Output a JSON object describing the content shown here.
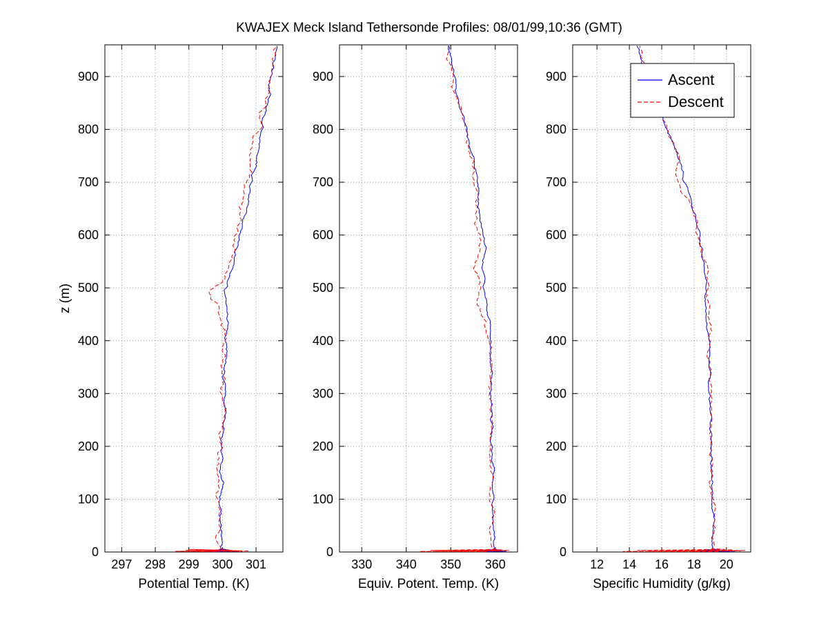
{
  "title": "KWAJEX Meck Island Tethersonde Profiles: 08/01/99,10:36 (GMT)",
  "colors": {
    "ascent": "#0000ff",
    "descent": "#ff0000",
    "grid": "#909090",
    "axis": "#000000",
    "background": "#ffffff"
  },
  "legend": {
    "panel": 2,
    "position": "northeast",
    "entries": [
      {
        "label": "Ascent",
        "color": "#0000ff",
        "style": "solid"
      },
      {
        "label": "Descent",
        "color": "#ff0000",
        "style": "dashed"
      }
    ]
  },
  "chart_data": [
    {
      "type": "line",
      "id": "potential-temp",
      "xlabel": "Potential Temp. (K)",
      "ylabel": "z (m)",
      "xlim": [
        296.5,
        301.8
      ],
      "ylim": [
        0,
        960
      ],
      "xticks": [
        297,
        298,
        299,
        300,
        301
      ],
      "yticks": [
        0,
        100,
        200,
        300,
        400,
        500,
        600,
        700,
        800,
        900
      ],
      "grid": true,
      "series": [
        {
          "name": "Ascent",
          "color": "#0000ff",
          "style": "solid",
          "noise": 0.07,
          "seed": 7,
          "surface": [
            [
              0.5,
              300.0
            ],
            [
              2,
              299.5
            ],
            [
              1,
              300.4
            ],
            [
              3,
              299.6
            ],
            [
              1.5,
              300.5
            ],
            [
              4,
              299.8
            ],
            [
              2,
              300.3
            ],
            [
              5,
              299.9
            ],
            [
              3,
              300.2
            ],
            [
              6,
              300.0
            ]
          ],
          "profile": [
            [
              6,
              300.0
            ],
            [
              50,
              299.97
            ],
            [
              100,
              299.95
            ],
            [
              150,
              299.97
            ],
            [
              200,
              300.0
            ],
            [
              250,
              300.0
            ],
            [
              300,
              300.03
            ],
            [
              350,
              300.06
            ],
            [
              400,
              300.08
            ],
            [
              450,
              300.1
            ],
            [
              500,
              300.16
            ],
            [
              550,
              300.32
            ],
            [
              600,
              300.5
            ],
            [
              650,
              300.68
            ],
            [
              700,
              300.85
            ],
            [
              750,
              301.0
            ],
            [
              800,
              301.15
            ],
            [
              850,
              301.3
            ],
            [
              900,
              301.45
            ],
            [
              960,
              301.67
            ]
          ]
        },
        {
          "name": "Descent",
          "color": "#ff0000",
          "style": "dashed",
          "noise": 0.1,
          "seed": 13,
          "surface": [
            [
              0.5,
              299.8
            ],
            [
              1.5,
              298.6
            ],
            [
              1,
              300.6
            ],
            [
              3,
              298.9
            ],
            [
              2,
              300.8
            ],
            [
              4,
              299.2
            ],
            [
              2.5,
              300.5
            ],
            [
              5,
              299.0
            ],
            [
              3,
              300.3
            ],
            [
              6,
              299.9
            ]
          ],
          "profile": [
            [
              6,
              299.95
            ],
            [
              50,
              299.94
            ],
            [
              100,
              299.92
            ],
            [
              150,
              299.94
            ],
            [
              200,
              299.97
            ],
            [
              250,
              299.98
            ],
            [
              300,
              300.0
            ],
            [
              350,
              300.02
            ],
            [
              400,
              300.04
            ],
            [
              450,
              300.0
            ],
            [
              480,
              299.65
            ],
            [
              495,
              299.6
            ],
            [
              510,
              299.95
            ],
            [
              550,
              300.22
            ],
            [
              600,
              300.4
            ],
            [
              650,
              300.55
            ],
            [
              700,
              300.72
            ],
            [
              750,
              300.88
            ],
            [
              800,
              301.06
            ],
            [
              850,
              301.26
            ],
            [
              900,
              301.42
            ],
            [
              960,
              301.62
            ]
          ]
        }
      ]
    },
    {
      "type": "line",
      "id": "equiv-potent-temp",
      "xlabel": "Equiv. Potent. Temp. (K)",
      "ylabel": "",
      "xlim": [
        325,
        365
      ],
      "ylim": [
        0,
        960
      ],
      "xticks": [
        330,
        340,
        350,
        360
      ],
      "yticks": [
        0,
        100,
        200,
        300,
        400,
        500,
        600,
        700,
        800,
        900
      ],
      "grid": true,
      "series": [
        {
          "name": "Ascent",
          "color": "#0000ff",
          "style": "solid",
          "noise": 0.45,
          "seed": 21,
          "surface": [
            [
              0.5,
              359.0
            ],
            [
              2,
              356.8
            ],
            [
              1,
              361.8
            ],
            [
              3,
              357.5
            ],
            [
              1.5,
              362.5
            ],
            [
              4,
              358.0
            ],
            [
              2,
              361.0
            ],
            [
              5,
              358.5
            ],
            [
              3,
              360.3
            ],
            [
              6,
              359.8
            ]
          ],
          "profile": [
            [
              6,
              359.8
            ],
            [
              50,
              359.6
            ],
            [
              100,
              359.5
            ],
            [
              150,
              359.4
            ],
            [
              200,
              359.35
            ],
            [
              250,
              359.25
            ],
            [
              300,
              359.2
            ],
            [
              350,
              359.1
            ],
            [
              400,
              358.9
            ],
            [
              450,
              358.4
            ],
            [
              500,
              357.7
            ],
            [
              540,
              357.2
            ],
            [
              575,
              357.7
            ],
            [
              605,
              357.0
            ],
            [
              650,
              355.9
            ],
            [
              690,
              356.1
            ],
            [
              720,
              355.5
            ],
            [
              750,
              354.8
            ],
            [
              800,
              353.5
            ],
            [
              850,
              352.3
            ],
            [
              900,
              350.9
            ],
            [
              960,
              349.4
            ]
          ]
        },
        {
          "name": "Descent",
          "color": "#ff0000",
          "style": "dashed",
          "noise": 0.7,
          "seed": 29,
          "surface": [
            [
              0.5,
              358.0
            ],
            [
              1,
              343.0
            ],
            [
              2,
              362.0
            ],
            [
              1.5,
              347.0
            ],
            [
              3,
              363.2
            ],
            [
              2,
              350.5
            ],
            [
              4,
              361.5
            ],
            [
              3,
              345.5
            ],
            [
              5,
              360.5
            ],
            [
              6,
              359.5
            ]
          ],
          "profile": [
            [
              6,
              359.6
            ],
            [
              50,
              359.45
            ],
            [
              100,
              359.35
            ],
            [
              150,
              359.25
            ],
            [
              200,
              359.15
            ],
            [
              250,
              359.05
            ],
            [
              300,
              359.0
            ],
            [
              350,
              358.85
            ],
            [
              400,
              358.5
            ],
            [
              440,
              357.6
            ],
            [
              470,
              356.1
            ],
            [
              500,
              356.9
            ],
            [
              540,
              355.3
            ],
            [
              565,
              355.9
            ],
            [
              590,
              356.2
            ],
            [
              640,
              355.3
            ],
            [
              690,
              355.6
            ],
            [
              730,
              354.9
            ],
            [
              760,
              354.2
            ],
            [
              800,
              353.2
            ],
            [
              850,
              352.0
            ],
            [
              900,
              350.6
            ],
            [
              960,
              349.1
            ]
          ]
        }
      ]
    },
    {
      "type": "line",
      "id": "specific-humidity",
      "xlabel": "Specific Humidity (g/kg)",
      "ylabel": "",
      "xlim": [
        10.5,
        21.5
      ],
      "ylim": [
        0,
        960
      ],
      "xticks": [
        12,
        14,
        16,
        18,
        20
      ],
      "yticks": [
        0,
        100,
        200,
        300,
        400,
        500,
        600,
        700,
        800,
        900
      ],
      "grid": true,
      "series": [
        {
          "name": "Ascent",
          "color": "#0000ff",
          "style": "solid",
          "noise": 0.12,
          "seed": 37,
          "surface": [
            [
              0.5,
              19.0
            ],
            [
              2,
              18.2
            ],
            [
              1,
              20.2
            ],
            [
              3,
              18.4
            ],
            [
              1.5,
              20.5
            ],
            [
              4,
              18.6
            ],
            [
              2,
              19.9
            ],
            [
              5,
              18.7
            ],
            [
              3,
              19.6
            ],
            [
              6,
              19.2
            ]
          ],
          "profile": [
            [
              6,
              19.1
            ],
            [
              50,
              19.15
            ],
            [
              100,
              19.1
            ],
            [
              150,
              19.1
            ],
            [
              200,
              19.05
            ],
            [
              250,
              19.02
            ],
            [
              300,
              19.0
            ],
            [
              350,
              19.0
            ],
            [
              400,
              18.95
            ],
            [
              450,
              18.85
            ],
            [
              500,
              18.72
            ],
            [
              550,
              18.55
            ],
            [
              600,
              18.3
            ],
            [
              650,
              17.9
            ],
            [
              700,
              17.45
            ],
            [
              750,
              16.95
            ],
            [
              800,
              16.35
            ],
            [
              850,
              15.75
            ],
            [
              900,
              15.1
            ],
            [
              960,
              14.5
            ]
          ]
        },
        {
          "name": "Descent",
          "color": "#ff0000",
          "style": "dashed",
          "noise": 0.18,
          "seed": 45,
          "surface": [
            [
              0.5,
              19.5
            ],
            [
              1,
              13.6
            ],
            [
              2,
              20.9
            ],
            [
              1.5,
              15.2
            ],
            [
              3,
              21.2
            ],
            [
              2,
              16.2
            ],
            [
              4,
              20.4
            ],
            [
              3,
              14.5
            ],
            [
              5,
              19.9
            ],
            [
              6,
              19.3
            ]
          ],
          "profile": [
            [
              6,
              19.2
            ],
            [
              50,
              19.2
            ],
            [
              100,
              19.15
            ],
            [
              150,
              19.12
            ],
            [
              200,
              19.1
            ],
            [
              250,
              19.07
            ],
            [
              300,
              19.05
            ],
            [
              350,
              19.02
            ],
            [
              400,
              19.0
            ],
            [
              450,
              18.95
            ],
            [
              500,
              18.88
            ],
            [
              550,
              18.62
            ],
            [
              600,
              18.35
            ],
            [
              650,
              17.95
            ],
            [
              690,
              17.2
            ],
            [
              715,
              16.85
            ],
            [
              740,
              17.05
            ],
            [
              780,
              16.65
            ],
            [
              820,
              16.15
            ],
            [
              850,
              15.85
            ],
            [
              900,
              15.2
            ],
            [
              960,
              14.55
            ]
          ]
        }
      ]
    }
  ]
}
